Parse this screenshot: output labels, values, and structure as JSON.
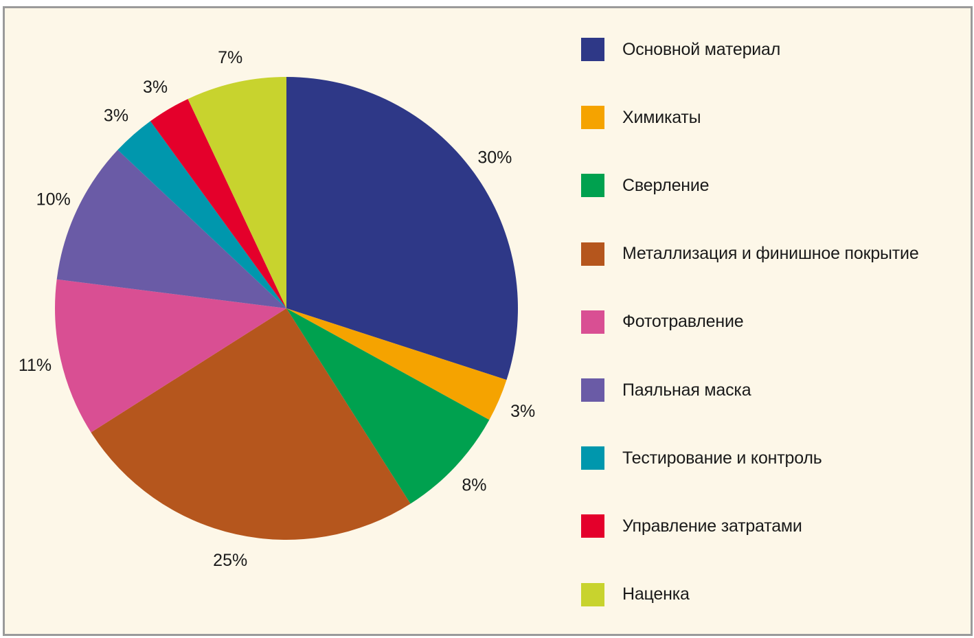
{
  "chart_data": {
    "type": "pie",
    "start_angle_deg": 0,
    "direction": "clockwise",
    "legend_position": "right",
    "slices": [
      {
        "name": "Основной материал",
        "value": 30,
        "label": "30%",
        "color": "#2e3887"
      },
      {
        "name": "Химикаты",
        "value": 3,
        "label": "3%",
        "color": "#f5a300"
      },
      {
        "name": "Сверление",
        "value": 8,
        "label": "8%",
        "color": "#00a14f"
      },
      {
        "name": "Металлизация и финишное покрытие",
        "value": 25,
        "label": "25%",
        "color": "#b5561d"
      },
      {
        "name": "Фототравление",
        "value": 11,
        "label": "11%",
        "color": "#d94f93"
      },
      {
        "name": "Паяльная маска",
        "value": 10,
        "label": "10%",
        "color": "#6a5ba6"
      },
      {
        "name": "Тестирование и контроль",
        "value": 3,
        "label": "3%",
        "color": "#0097ad"
      },
      {
        "name": "Управление затратами",
        "value": 3,
        "label": "3%",
        "color": "#e4002b"
      },
      {
        "name": "Наценка",
        "value": 7,
        "label": "7%",
        "color": "#c8d32e"
      }
    ]
  }
}
